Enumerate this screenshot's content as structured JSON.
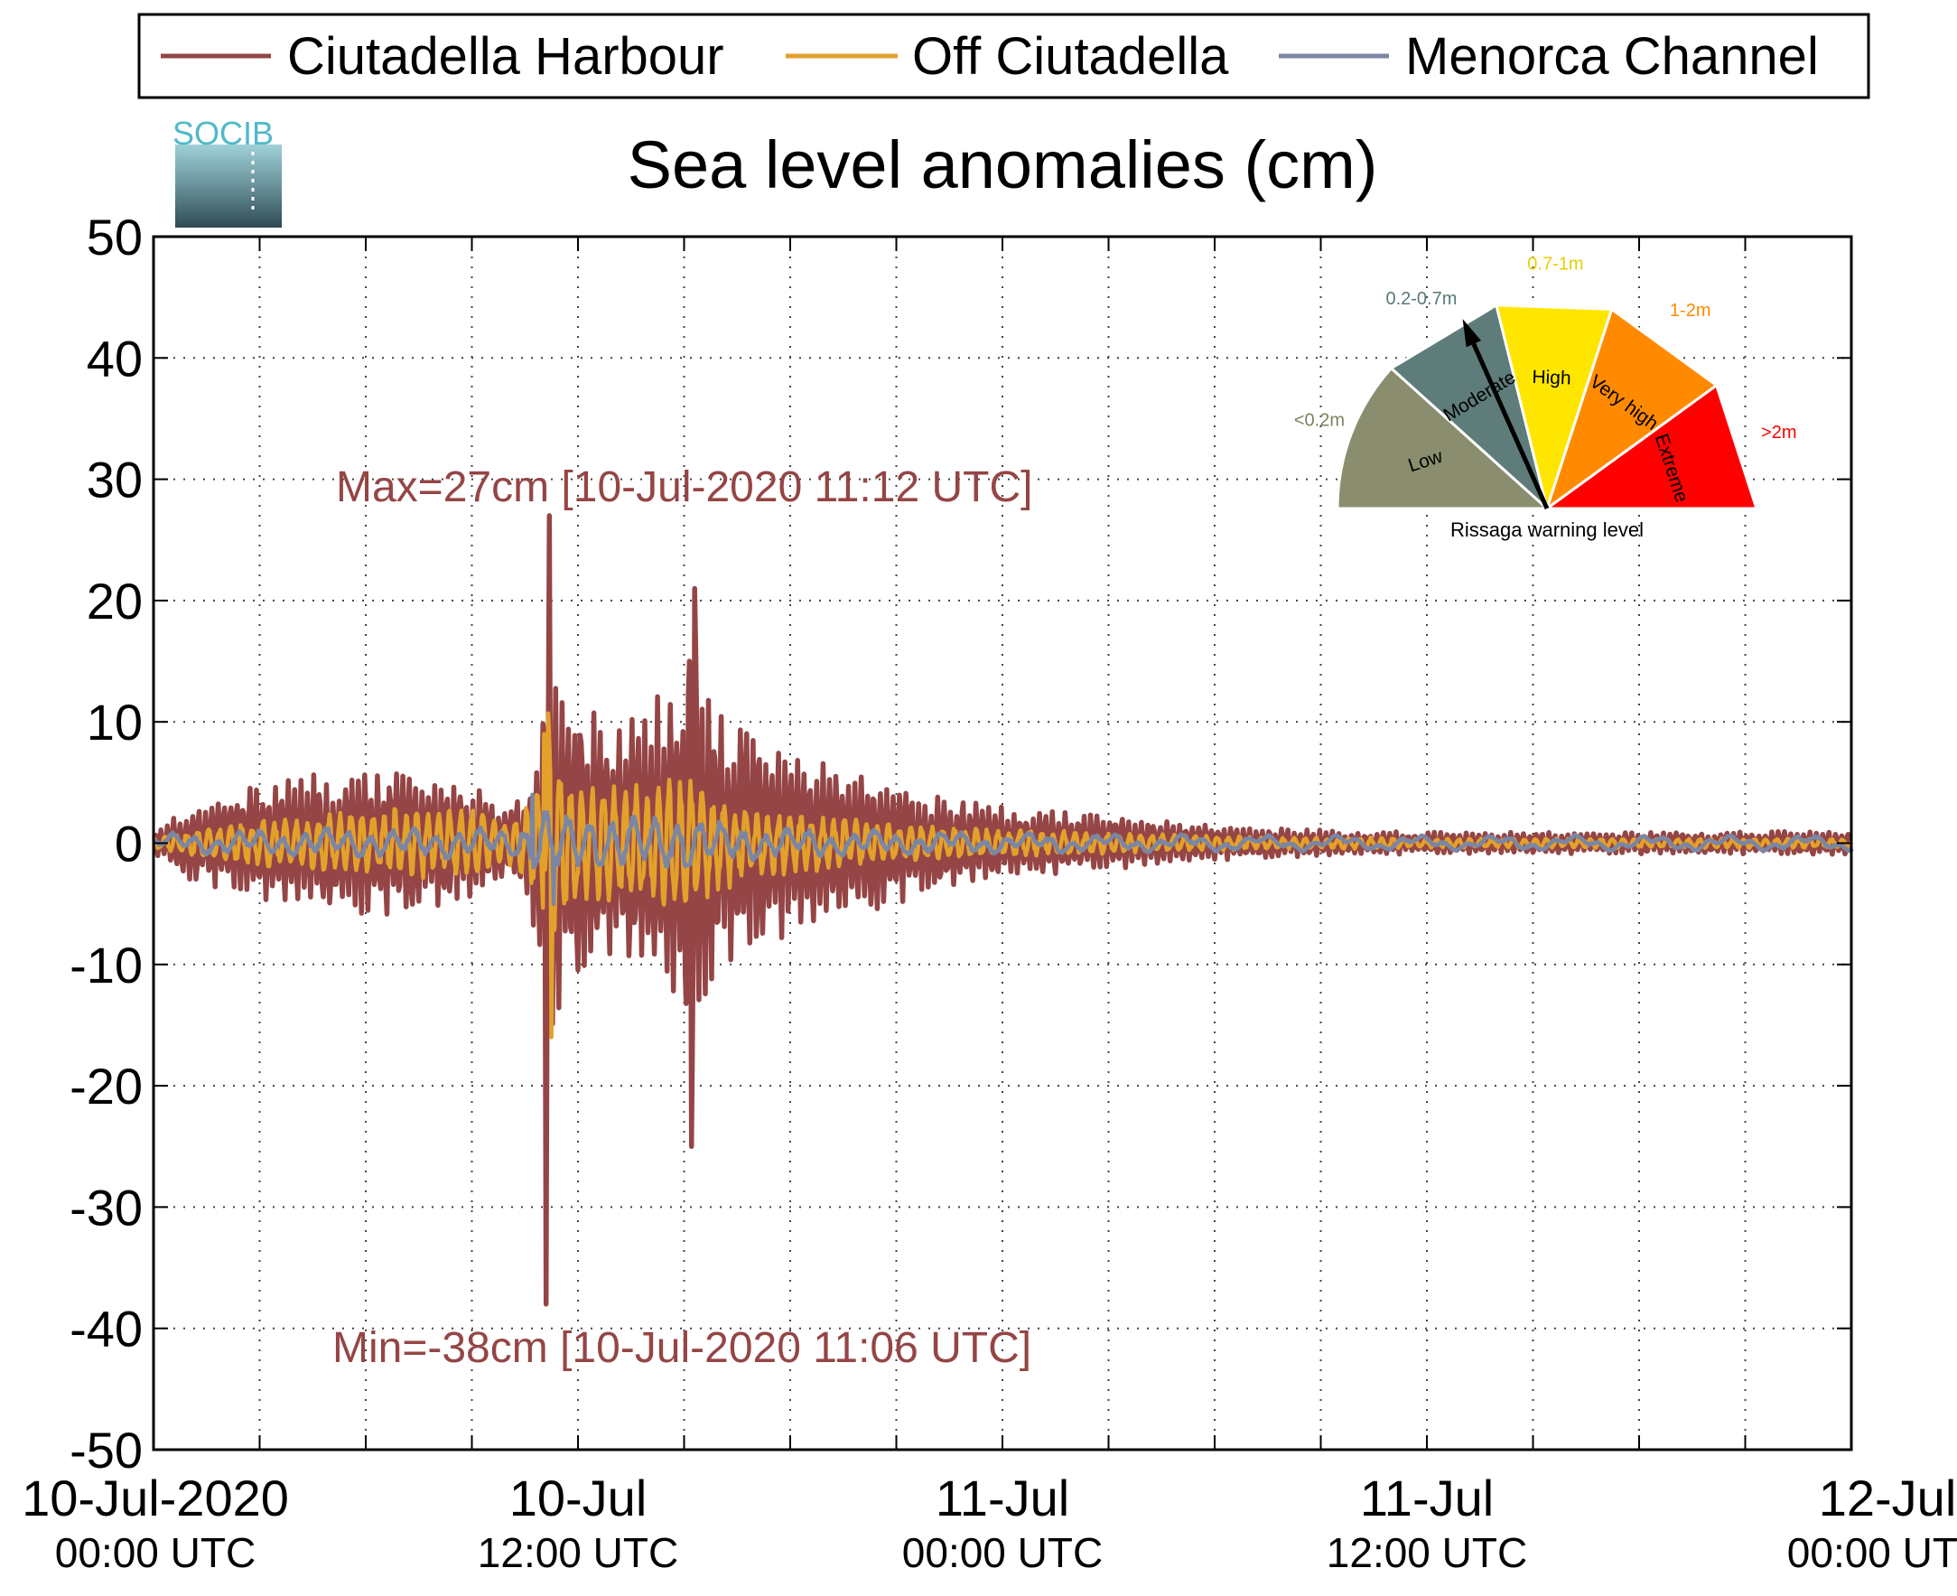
{
  "chart_data": {
    "type": "line",
    "title": "Sea level anomalies (cm)",
    "ylim": [
      -50,
      50
    ],
    "yticks": [
      "50",
      "40",
      "30",
      "20",
      "10",
      "0",
      "-10",
      "-20",
      "-30",
      "-40",
      "-50"
    ],
    "xlim_hours": [
      0,
      48
    ],
    "xticks": [
      {
        "label": "10-Jul-2020",
        "sub": "00:00 UTC"
      },
      {
        "label": "10-Jul",
        "sub": "12:00 UTC"
      },
      {
        "label": "11-Jul",
        "sub": "00:00 UTC"
      },
      {
        "label": "11-Jul",
        "sub": "12:00 UTC"
      },
      {
        "label": "12-Jul",
        "sub": "00:00 UTC"
      }
    ],
    "grid": true,
    "legend_position": "top",
    "series": [
      {
        "name": "Ciutadella Harbour",
        "color": "#954545",
        "stroke": 5.5
      },
      {
        "name": "Off Ciutadella",
        "color": "#e3a12b",
        "stroke": 4.5
      },
      {
        "name": "Menorca Channel",
        "color": "#7a86a4",
        "stroke": 4.5
      }
    ],
    "envelope": {
      "hours": [
        0,
        1,
        3,
        5,
        7,
        9,
        10,
        10.5,
        11,
        11.1,
        11.2,
        11.4,
        12,
        13,
        14,
        15,
        15.2,
        15.5,
        16,
        17,
        18,
        20,
        22,
        24,
        26,
        28,
        30,
        32,
        34,
        36,
        40,
        44,
        48
      ],
      "harbour": [
        1,
        3,
        5,
        6,
        6,
        5,
        3,
        4,
        10,
        30,
        30,
        14,
        12,
        10,
        11,
        16,
        22,
        13,
        11,
        9,
        8,
        6,
        4,
        3,
        2.5,
        2,
        1.5,
        1.2,
        1,
        0.9,
        0.9,
        0.9,
        1.0
      ],
      "off": [
        0.5,
        1,
        2,
        2.5,
        3,
        3,
        2,
        3,
        6,
        10,
        12,
        7,
        5,
        5,
        5,
        6,
        6,
        5,
        4,
        3,
        2.5,
        2,
        1.5,
        1.2,
        1,
        0.8,
        0.6,
        0.5,
        0.5,
        0.4,
        0.4,
        0.4,
        0.4
      ],
      "channel": [
        0.4,
        0.6,
        0.8,
        1,
        1,
        1,
        1,
        1.5,
        2.5,
        3,
        3,
        2.5,
        2,
        2,
        2,
        2,
        2,
        1.8,
        1.5,
        1.2,
        1,
        0.8,
        0.7,
        0.6,
        0.5,
        0.4,
        0.4,
        0.3,
        0.3,
        0.3,
        0.3,
        0.3,
        0.3
      ]
    },
    "extremes": {
      "max": {
        "hour": 11.2,
        "value": 27
      },
      "min": {
        "hour": 11.1,
        "value": -38
      },
      "secondary": [
        {
          "hour": 15.3,
          "value": 21
        },
        {
          "hour": 15.2,
          "value": -25
        }
      ]
    },
    "annotations": {
      "max": "Max=27cm [10-Jul-2020 11:12 UTC]",
      "min": "Min=-38cm [10-Jul-2020 11:06 UTC]"
    },
    "inset": {
      "title": "Rissaga warning level",
      "current_level": "Moderate",
      "pointer_angle_deg": 114,
      "categories": [
        {
          "name": "Low",
          "range": "<0.2m",
          "color": "#8a8e6e",
          "range_color": "#7d8160"
        },
        {
          "name": "Moderate",
          "range": "0.2-0.7m",
          "color": "#5e7c7a",
          "range_color": "#5a7878"
        },
        {
          "name": "High",
          "range": "0.7-1m",
          "color": "#ffe600",
          "range_color": "#e6cf00"
        },
        {
          "name": "Very high",
          "range": "1-2m",
          "color": "#ff8a00",
          "range_color": "#ff8a00"
        },
        {
          "name": "Extreme",
          "range": ">2m",
          "color": "#ff0000",
          "range_color": "#ff0000"
        }
      ]
    }
  },
  "logo": {
    "text": "SOCIB"
  }
}
